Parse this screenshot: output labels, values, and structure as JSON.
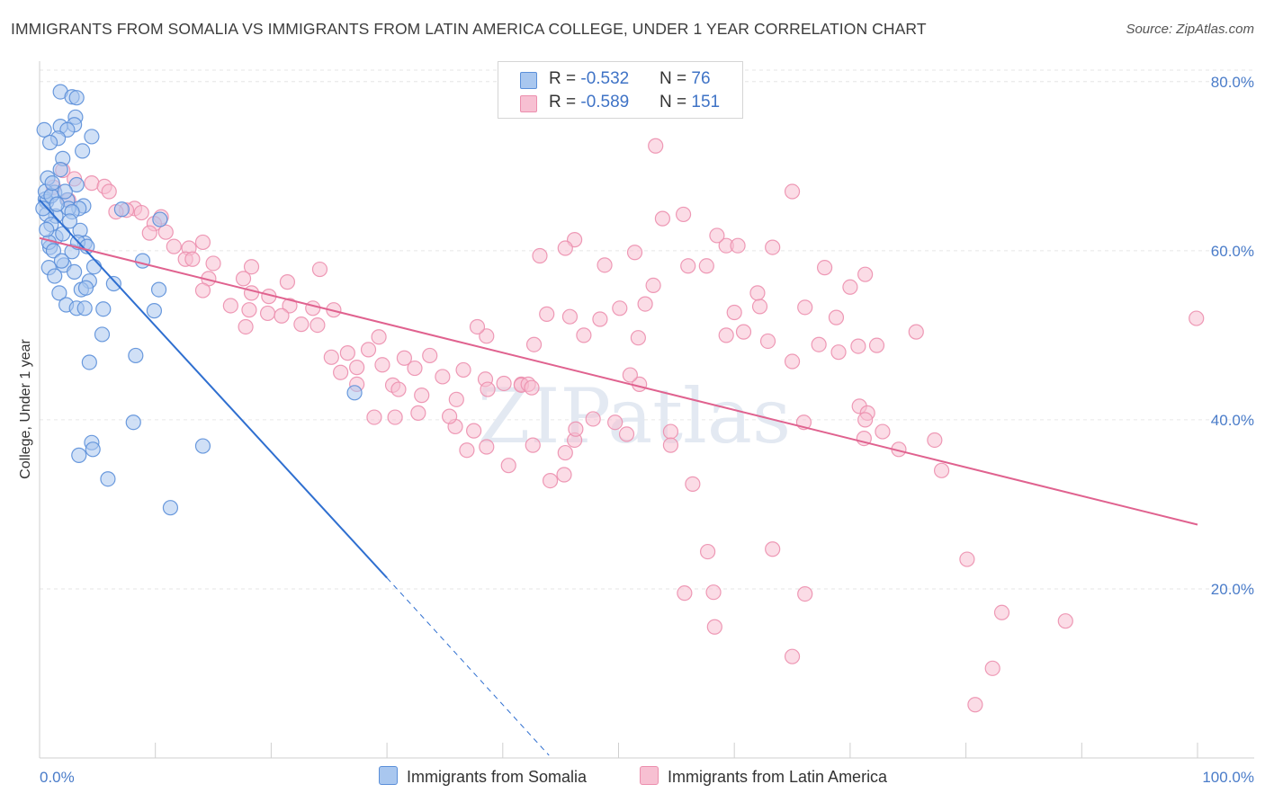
{
  "title": "IMMIGRANTS FROM SOMALIA VS IMMIGRANTS FROM LATIN AMERICA COLLEGE, UNDER 1 YEAR CORRELATION CHART",
  "source": "Source: ZipAtlas.com",
  "watermark": "ZIPatlas",
  "colors": {
    "somalia_fill": "#a9c7ef",
    "somalia_stroke": "#5b8fd9",
    "somalia_line": "#2f6fd0",
    "latin_fill": "#f7c0d2",
    "latin_stroke": "#ec8fae",
    "latin_line": "#e0628f",
    "tick_text": "#4a7cc9",
    "grid": "#e6e6e6"
  },
  "legend": {
    "rows": [
      {
        "r_label": "R = ",
        "r_value": "-0.532",
        "n_label": "N = ",
        "n_value": "76"
      },
      {
        "r_label": "R = ",
        "r_value": "-0.589",
        "n_label": "N = ",
        "n_value": "151"
      }
    ]
  },
  "bottom_legend": {
    "somalia": "Immigrants from Somalia",
    "latin": "Immigrants from Latin America"
  },
  "chart_data": {
    "type": "scatter",
    "title": "IMMIGRANTS FROM SOMALIA VS IMMIGRANTS FROM LATIN AMERICA COLLEGE, UNDER 1 YEAR CORRELATION CHART",
    "xlabel": "",
    "ylabel": "College, Under 1 year",
    "xlim": [
      0,
      100
    ],
    "ylim": [
      0,
      82
    ],
    "x_tick_labels": [
      "0.0%",
      "100.0%"
    ],
    "y_ticks": [
      20,
      40,
      60,
      80
    ],
    "y_tick_labels": [
      "20.0%",
      "40.0%",
      "60.0%",
      "80.0%"
    ],
    "series": [
      {
        "name": "Immigrants from Somalia",
        "R": -0.532,
        "N": 76,
        "trend": {
          "x0": 0,
          "y0": 66.0,
          "x1": 30,
          "y1": 21.3,
          "dash_to_x": 44,
          "dash_to_y": 0.3
        },
        "points": [
          [
            1.8,
            78.8
          ],
          [
            2.8,
            78.2
          ],
          [
            3.2,
            78.1
          ],
          [
            3.1,
            75.8
          ],
          [
            3.0,
            74.9
          ],
          [
            1.8,
            74.7
          ],
          [
            2.4,
            74.3
          ],
          [
            0.4,
            74.3
          ],
          [
            1.6,
            73.3
          ],
          [
            4.5,
            73.5
          ],
          [
            0.9,
            72.8
          ],
          [
            3.7,
            71.8
          ],
          [
            2.0,
            70.9
          ],
          [
            1.8,
            69.6
          ],
          [
            0.7,
            68.6
          ],
          [
            3.2,
            67.8
          ],
          [
            1.3,
            66.9
          ],
          [
            2.4,
            66.0
          ],
          [
            0.5,
            66.1
          ],
          [
            0.6,
            65.8
          ],
          [
            3.8,
            65.3
          ],
          [
            3.4,
            65.0
          ],
          [
            2.5,
            65.0
          ],
          [
            2.8,
            64.6
          ],
          [
            7.1,
            64.9
          ],
          [
            1.4,
            64.1
          ],
          [
            0.6,
            64.3
          ],
          [
            10.4,
            63.7
          ],
          [
            1.0,
            63.1
          ],
          [
            3.5,
            62.4
          ],
          [
            1.4,
            61.6
          ],
          [
            3.9,
            60.9
          ],
          [
            0.9,
            60.4
          ],
          [
            2.8,
            59.9
          ],
          [
            8.9,
            58.8
          ],
          [
            2.1,
            58.3
          ],
          [
            0.8,
            58.0
          ],
          [
            4.7,
            58.1
          ],
          [
            1.3,
            57.0
          ],
          [
            4.3,
            56.4
          ],
          [
            6.4,
            56.1
          ],
          [
            3.6,
            55.4
          ],
          [
            10.3,
            55.4
          ],
          [
            1.7,
            55.0
          ],
          [
            4.0,
            55.6
          ],
          [
            2.3,
            53.6
          ],
          [
            3.2,
            53.2
          ],
          [
            3.9,
            53.2
          ],
          [
            5.5,
            53.1
          ],
          [
            9.9,
            52.9
          ],
          [
            5.4,
            50.1
          ],
          [
            8.3,
            47.6
          ],
          [
            4.3,
            46.8
          ],
          [
            27.2,
            43.2
          ],
          [
            8.1,
            39.7
          ],
          [
            4.5,
            37.3
          ],
          [
            14.1,
            36.9
          ],
          [
            4.6,
            36.5
          ],
          [
            3.4,
            35.8
          ],
          [
            5.9,
            33.0
          ],
          [
            11.3,
            29.6
          ],
          [
            0.5,
            67.0
          ],
          [
            1.0,
            66.5
          ],
          [
            1.5,
            65.5
          ],
          [
            2.0,
            62.0
          ],
          [
            0.8,
            61.0
          ],
          [
            1.2,
            60.0
          ],
          [
            2.6,
            63.5
          ],
          [
            3.0,
            57.5
          ],
          [
            0.3,
            65.0
          ],
          [
            1.1,
            68.0
          ],
          [
            2.2,
            67.0
          ],
          [
            0.6,
            62.5
          ],
          [
            1.9,
            58.8
          ],
          [
            3.3,
            61.0
          ],
          [
            4.1,
            60.5
          ]
        ]
      },
      {
        "name": "Immigrants from Latin America",
        "R": -0.589,
        "N": 151,
        "trend": {
          "x0": 0,
          "y0": 61.5,
          "x1": 100,
          "y1": 27.6
        },
        "points": [
          [
            53.2,
            72.4
          ],
          [
            65.0,
            67.0
          ],
          [
            1.2,
            67.5
          ],
          [
            2.0,
            69.5
          ],
          [
            3.0,
            68.5
          ],
          [
            4.5,
            68.0
          ],
          [
            5.6,
            67.6
          ],
          [
            6.0,
            67.0
          ],
          [
            2.5,
            66.0
          ],
          [
            8.2,
            65.0
          ],
          [
            7.5,
            64.8
          ],
          [
            8.8,
            64.5
          ],
          [
            6.6,
            64.6
          ],
          [
            10.5,
            64.0
          ],
          [
            9.9,
            63.2
          ],
          [
            10.9,
            62.2
          ],
          [
            14.1,
            61.0
          ],
          [
            11.6,
            60.5
          ],
          [
            12.9,
            60.3
          ],
          [
            12.6,
            59.0
          ],
          [
            15.0,
            58.5
          ],
          [
            18.3,
            58.1
          ],
          [
            14.6,
            56.7
          ],
          [
            17.6,
            56.7
          ],
          [
            21.4,
            56.3
          ],
          [
            14.1,
            55.3
          ],
          [
            18.3,
            55.0
          ],
          [
            19.8,
            54.6
          ],
          [
            21.6,
            53.5
          ],
          [
            22.6,
            51.3
          ],
          [
            23.6,
            53.2
          ],
          [
            24.0,
            51.2
          ],
          [
            25.4,
            53.0
          ],
          [
            19.7,
            52.6
          ],
          [
            18.1,
            53.0
          ],
          [
            20.9,
            52.3
          ],
          [
            26.6,
            47.9
          ],
          [
            28.4,
            48.3
          ],
          [
            25.2,
            47.4
          ],
          [
            27.4,
            46.2
          ],
          [
            29.3,
            49.8
          ],
          [
            31.5,
            47.3
          ],
          [
            33.7,
            47.6
          ],
          [
            32.4,
            46.1
          ],
          [
            34.8,
            45.1
          ],
          [
            26.0,
            45.6
          ],
          [
            27.4,
            44.2
          ],
          [
            30.5,
            44.1
          ],
          [
            33.0,
            42.9
          ],
          [
            36.0,
            42.4
          ],
          [
            32.7,
            40.8
          ],
          [
            28.9,
            40.3
          ],
          [
            30.7,
            40.3
          ],
          [
            35.9,
            39.2
          ],
          [
            35.4,
            40.4
          ],
          [
            36.6,
            45.9
          ],
          [
            38.5,
            44.8
          ],
          [
            38.7,
            43.6
          ],
          [
            40.1,
            44.3
          ],
          [
            41.6,
            44.2
          ],
          [
            41.6,
            44.1
          ],
          [
            42.2,
            44.2
          ],
          [
            37.5,
            38.7
          ],
          [
            36.9,
            36.4
          ],
          [
            38.6,
            36.8
          ],
          [
            42.6,
            37.0
          ],
          [
            46.2,
            37.6
          ],
          [
            45.4,
            36.1
          ],
          [
            40.5,
            34.6
          ],
          [
            44.1,
            32.8
          ],
          [
            45.3,
            33.5
          ],
          [
            46.3,
            38.9
          ],
          [
            47.8,
            40.1
          ],
          [
            49.7,
            39.7
          ],
          [
            50.7,
            38.3
          ],
          [
            51.8,
            44.2
          ],
          [
            54.5,
            38.6
          ],
          [
            54.5,
            37.0
          ],
          [
            38.6,
            49.9
          ],
          [
            42.7,
            48.9
          ],
          [
            43.8,
            52.5
          ],
          [
            47.0,
            50.0
          ],
          [
            48.4,
            51.9
          ],
          [
            50.1,
            53.2
          ],
          [
            51.7,
            49.7
          ],
          [
            52.3,
            53.7
          ],
          [
            53.0,
            55.9
          ],
          [
            56.0,
            58.2
          ],
          [
            59.3,
            60.6
          ],
          [
            60.0,
            52.7
          ],
          [
            60.8,
            50.4
          ],
          [
            62.2,
            53.4
          ],
          [
            62.9,
            49.3
          ],
          [
            65.0,
            46.9
          ],
          [
            66.1,
            53.3
          ],
          [
            67.3,
            48.9
          ],
          [
            68.8,
            52.1
          ],
          [
            70.0,
            55.7
          ],
          [
            69.0,
            48.0
          ],
          [
            70.8,
            41.6
          ],
          [
            71.5,
            40.8
          ],
          [
            66.0,
            39.7
          ],
          [
            71.2,
            37.8
          ],
          [
            72.8,
            38.6
          ],
          [
            74.2,
            36.5
          ],
          [
            71.3,
            40.0
          ],
          [
            72.3,
            48.8
          ],
          [
            75.7,
            50.4
          ],
          [
            77.3,
            37.6
          ],
          [
            77.9,
            34.0
          ],
          [
            53.8,
            63.8
          ],
          [
            55.6,
            64.3
          ],
          [
            58.5,
            61.8
          ],
          [
            60.3,
            60.6
          ],
          [
            63.3,
            60.4
          ],
          [
            51.4,
            59.8
          ],
          [
            48.8,
            58.3
          ],
          [
            46.2,
            61.3
          ],
          [
            43.2,
            59.4
          ],
          [
            45.4,
            60.3
          ],
          [
            59.3,
            50.0
          ],
          [
            57.6,
            58.2
          ],
          [
            70.7,
            48.7
          ],
          [
            99.9,
            52.0
          ],
          [
            56.4,
            32.4
          ],
          [
            55.7,
            19.5
          ],
          [
            57.7,
            24.4
          ],
          [
            58.2,
            19.6
          ],
          [
            58.3,
            15.5
          ],
          [
            63.3,
            24.7
          ],
          [
            66.1,
            19.4
          ],
          [
            65.0,
            12.0
          ],
          [
            80.1,
            23.5
          ],
          [
            83.1,
            17.2
          ],
          [
            88.6,
            16.2
          ],
          [
            82.3,
            10.6
          ],
          [
            80.8,
            6.3
          ],
          [
            67.8,
            58.0
          ],
          [
            71.3,
            57.2
          ],
          [
            24.2,
            57.8
          ],
          [
            13.2,
            59.0
          ],
          [
            9.5,
            62.1
          ],
          [
            16.5,
            53.5
          ],
          [
            37.8,
            51.0
          ],
          [
            45.8,
            52.2
          ],
          [
            62.0,
            55.0
          ],
          [
            29.6,
            46.5
          ],
          [
            51.0,
            45.3
          ],
          [
            17.8,
            51.0
          ],
          [
            42.5,
            43.8
          ],
          [
            31.0,
            43.6
          ]
        ]
      }
    ]
  }
}
